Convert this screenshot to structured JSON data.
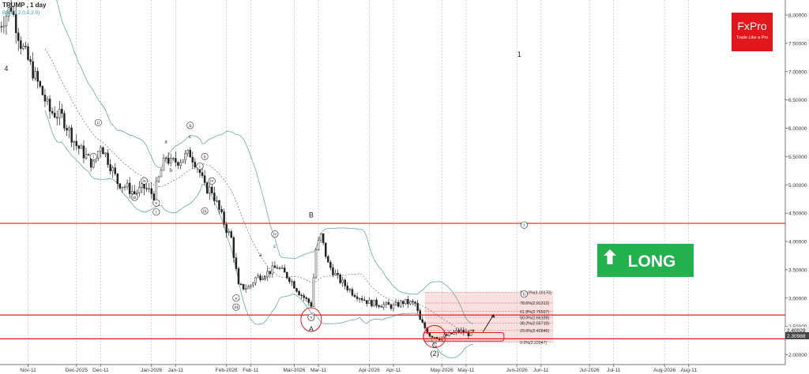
{
  "chart_data": {
    "type": "candlestick",
    "symbol_label": "TRUMP , 1 day",
    "indicator_label": "BB(20,2.0,0,2.0)",
    "ylim": [
      2.0,
      8.25
    ],
    "y_ticks": [
      "8.00000",
      "7.50000",
      "7.00000",
      "6.50000",
      "6.00000",
      "5.50000",
      "5.00000",
      "4.50000",
      "4.00000",
      "3.50000",
      "3.00000",
      "2.50000",
      "2.00000"
    ],
    "x_ticks": [
      "Nov-11",
      "Dec-2025",
      "Dec-11",
      "Jan-2026",
      "Jan-11",
      "Feb-2026",
      "Feb-11",
      "Mar-2026",
      "Mar-11",
      "Apr-2026",
      "Apr-11",
      "May-2026",
      "May-11",
      "Jun-2026",
      "Jun-11",
      "Jul-2026",
      "Jul-11",
      "Aug-2026",
      "Aug-11"
    ],
    "price_labels": [
      "2.40029",
      "2.30988"
    ],
    "horizontal_levels": [
      4.32,
      2.7,
      2.28
    ],
    "fibonacci": {
      "low": 2.22047,
      "high": 3.1017,
      "levels": [
        {
          "ratio_label": "100.0%",
          "value": 3.1017,
          "text": "100.0%(3.10170)"
        },
        {
          "ratio_label": "78.6%",
          "value": 2.91312,
          "text": "78.6%(2.91312)"
        },
        {
          "ratio_label": "61.8%",
          "value": 2.76507,
          "text": "61.8%(2.76507)"
        },
        {
          "ratio_label": "50.0%",
          "value": 2.66109,
          "text": "50.0%(2.66109)"
        },
        {
          "ratio_label": "38.2%",
          "value": 2.5571,
          "text": "38.2%(2.55710)"
        },
        {
          "ratio_label": "23.6%",
          "value": 2.42846,
          "text": "23.6%(2.42846)"
        },
        {
          "ratio_label": "0.0%",
          "value": 2.22047,
          "text": "0.0%(2.22047)"
        }
      ]
    },
    "wave_labels": [
      {
        "text": "4",
        "date": "2025-11-02",
        "price": 7.05
      },
      {
        "text": "1",
        "date": "2026-06-02",
        "price": 7.3
      },
      {
        "text": "B",
        "date": "2026-03-08",
        "price": 4.47
      },
      {
        "text": "A",
        "date": "2026-03-08",
        "price": 2.45
      },
      {
        "text": "C",
        "date": "2026-04-28",
        "price": 2.17
      },
      {
        "text": "(2)",
        "date": "2026-04-28",
        "price": 2.02
      },
      {
        "text": "ii",
        "date": "2025-12-10",
        "price": 6.1,
        "circled": true
      },
      {
        "text": "i",
        "date": "2025-12-08",
        "price": 5.5,
        "circled": true
      },
      {
        "text": "iii",
        "date": "2025-12-25",
        "price": 4.78,
        "circled": true
      },
      {
        "text": "iv",
        "date": "2025-12-29",
        "price": 5.07,
        "circled": true
      },
      {
        "text": "v",
        "date": "2026-01-03",
        "price": 4.68,
        "circled": true
      },
      {
        "text": "i",
        "date": "2026-01-03",
        "price": 4.52,
        "circled": true
      },
      {
        "text": "a",
        "date": "2026-01-07",
        "price": 5.78
      },
      {
        "text": "b",
        "date": "2026-01-09",
        "price": 5.27
      },
      {
        "text": "c",
        "date": "2026-01-17",
        "price": 5.87
      },
      {
        "text": "ii",
        "date": "2026-01-17",
        "price": 6.05,
        "circled": true
      },
      {
        "text": "i",
        "date": "2026-01-21",
        "price": 5.33,
        "circled": true
      },
      {
        "text": "ii",
        "date": "2026-01-23",
        "price": 5.5,
        "circled": true
      },
      {
        "text": "iii",
        "date": "2026-01-23",
        "price": 4.54,
        "circled": true
      },
      {
        "text": "iv",
        "date": "2026-01-26",
        "price": 5.07,
        "circled": true
      },
      {
        "text": "v",
        "date": "2026-02-05",
        "price": 3.0,
        "circled": true
      },
      {
        "text": "iii",
        "date": "2026-02-05",
        "price": 2.84,
        "circled": true
      },
      {
        "text": "a",
        "date": "2026-02-15",
        "price": 3.78
      },
      {
        "text": "b",
        "date": "2026-02-17",
        "price": 3.37
      },
      {
        "text": "c",
        "date": "2026-02-21",
        "price": 3.93
      },
      {
        "text": "iv",
        "date": "2026-02-21",
        "price": 4.13,
        "circled": true
      },
      {
        "text": "v",
        "date": "2026-03-08",
        "price": 2.66,
        "circled": true
      },
      {
        "text": "i",
        "date": "2026-06-04",
        "price": 4.29,
        "circled": true
      },
      {
        "text": "ii",
        "date": "2026-06-04",
        "price": 3.07,
        "circled": true
      }
    ],
    "candles": []
  },
  "badge": {
    "label": "LONG"
  },
  "logo": {
    "brand": "FxPro",
    "tagline": "Trade Like a Pro"
  }
}
